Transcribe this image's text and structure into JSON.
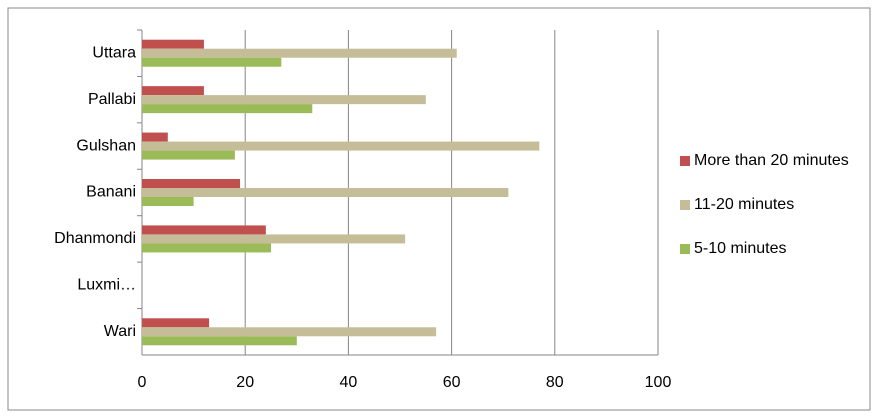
{
  "chart_data": {
    "type": "hbar",
    "categories": [
      "Uttara",
      "Pallabi",
      "Gulshan",
      "Banani",
      "Dhanmondi",
      "Luxmi…",
      "Wari"
    ],
    "series": [
      {
        "name": "More than 20 minutes",
        "color": "#c0504d",
        "values": [
          12,
          12,
          5,
          19,
          24,
          null,
          13
        ]
      },
      {
        "name": "11-20 minutes",
        "color": "#c4bd97",
        "values": [
          61,
          55,
          77,
          71,
          51,
          null,
          57
        ]
      },
      {
        "name": "5-10 minutes",
        "color": "#9bbb59",
        "values": [
          27,
          33,
          18,
          10,
          25,
          null,
          30
        ]
      }
    ],
    "xlim": [
      0,
      100
    ],
    "xticks": [
      0,
      20,
      40,
      60,
      80,
      100
    ],
    "grid": true,
    "legend": "right"
  }
}
